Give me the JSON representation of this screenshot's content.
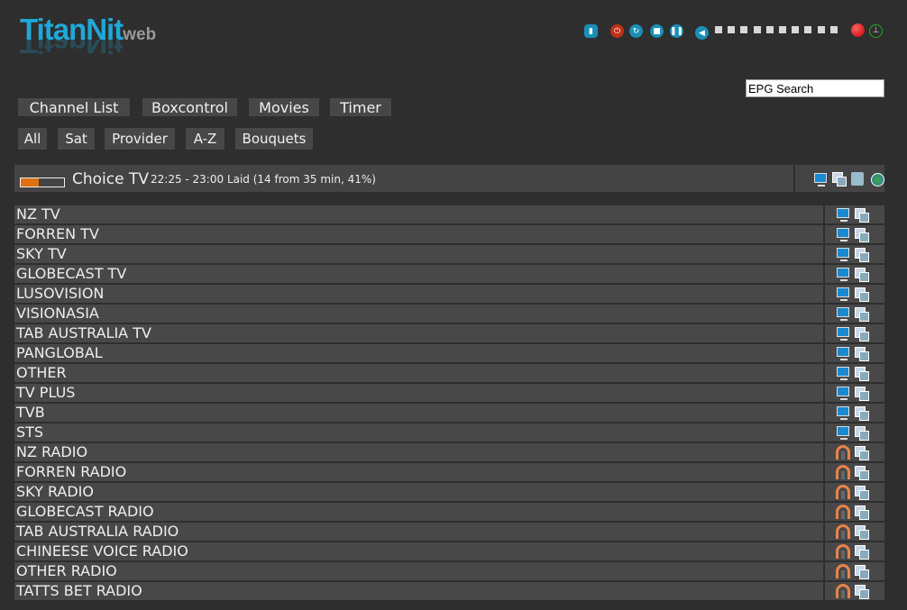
{
  "logo": {
    "text": "TitanNit",
    "suffix": "web"
  },
  "toolbar": {
    "icons": [
      "remote-icon",
      "power-icon",
      "restart-icon",
      "stop-icon",
      "pause-icon",
      "volume-icon"
    ],
    "volume_steps": 10,
    "record": "record-icon",
    "antenna": "antenna-icon"
  },
  "search": {
    "value": "EPG Search"
  },
  "nav": [
    "Channel List",
    "Boxcontrol",
    "Movies",
    "Timer"
  ],
  "filters": [
    "All",
    "Sat",
    "Provider",
    "A-Z",
    "Bouquets"
  ],
  "now": {
    "channel": "Choice TV",
    "info": "22:25 - 23:00 Laid (14 from 35 min, 41%)",
    "progress_percent": 41,
    "icons": [
      "tv-icon",
      "epg-icon",
      "stream-icon",
      "web-icon"
    ]
  },
  "colors": {
    "accent": "#1fa8d8",
    "progress": "#e07010"
  },
  "bouquets": [
    {
      "name": "NZ TV",
      "type": "tv"
    },
    {
      "name": "FORREN TV",
      "type": "tv"
    },
    {
      "name": "SKY TV",
      "type": "tv"
    },
    {
      "name": "GLOBECAST TV",
      "type": "tv"
    },
    {
      "name": "LUSOVISION",
      "type": "tv"
    },
    {
      "name": "VISIONASIA",
      "type": "tv"
    },
    {
      "name": "TAB AUSTRALIA TV",
      "type": "tv"
    },
    {
      "name": "PANGLOBAL",
      "type": "tv"
    },
    {
      "name": "OTHER",
      "type": "tv"
    },
    {
      "name": "TV PLUS",
      "type": "tv"
    },
    {
      "name": "TVB",
      "type": "tv"
    },
    {
      "name": "STS",
      "type": "tv"
    },
    {
      "name": "NZ RADIO",
      "type": "radio"
    },
    {
      "name": "FORREN RADIO",
      "type": "radio"
    },
    {
      "name": "SKY RADIO",
      "type": "radio"
    },
    {
      "name": "GLOBECAST RADIO",
      "type": "radio"
    },
    {
      "name": "TAB AUSTRALIA RADIO",
      "type": "radio"
    },
    {
      "name": "CHINEESE VOICE RADIO",
      "type": "radio"
    },
    {
      "name": "OTHER RADIO",
      "type": "radio"
    },
    {
      "name": "TATTS BET RADIO",
      "type": "radio"
    }
  ]
}
